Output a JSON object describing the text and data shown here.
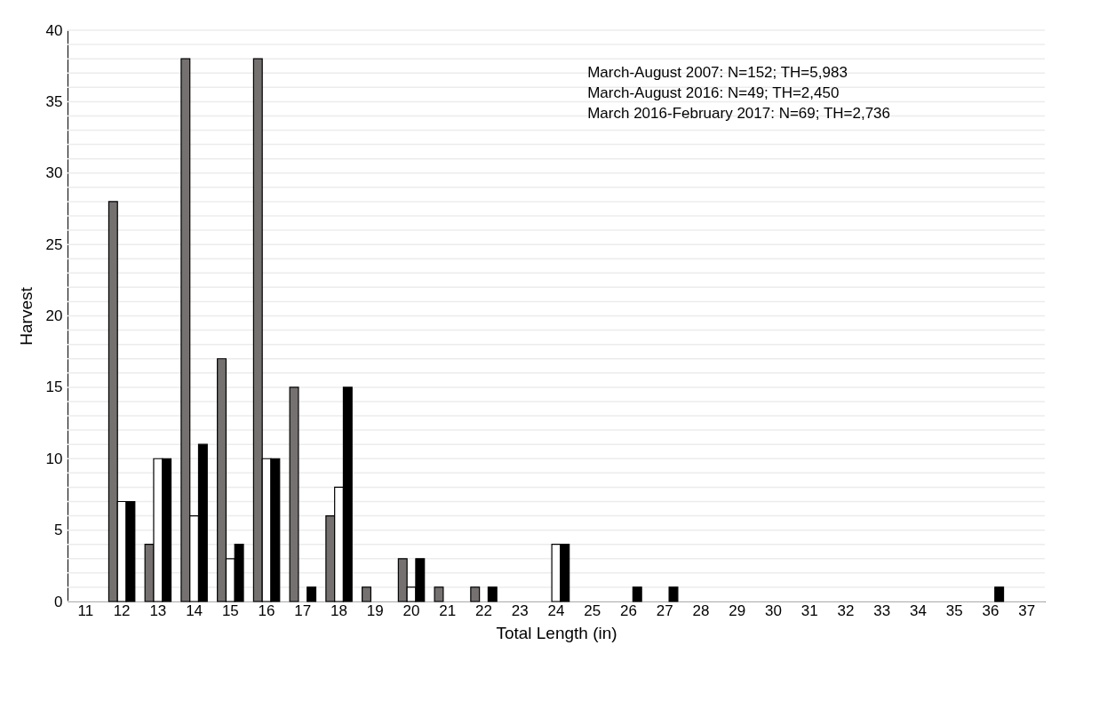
{
  "chart_data": {
    "type": "bar",
    "xlabel": "Total Length (in)",
    "ylabel": "Harvest",
    "categories": [
      "11",
      "12",
      "13",
      "14",
      "15",
      "16",
      "17",
      "18",
      "19",
      "20",
      "21",
      "22",
      "23",
      "24",
      "25",
      "26",
      "27",
      "28",
      "29",
      "30",
      "31",
      "32",
      "33",
      "34",
      "35",
      "36",
      "37"
    ],
    "series": [
      {
        "color": "#767171",
        "values": [
          null,
          28,
          4,
          38,
          17,
          38,
          15,
          6,
          1,
          3,
          1,
          1,
          null,
          null,
          null,
          null,
          null,
          null,
          null,
          null,
          null,
          null,
          null,
          null,
          null,
          null,
          null
        ]
      },
      {
        "color": "#ffffff",
        "values": [
          null,
          7,
          10,
          6,
          3,
          10,
          null,
          8,
          null,
          1,
          null,
          null,
          null,
          4,
          null,
          null,
          null,
          null,
          null,
          null,
          null,
          null,
          null,
          null,
          null,
          null,
          null
        ]
      },
      {
        "color": "#000000",
        "values": [
          null,
          7,
          10,
          11,
          4,
          10,
          1,
          15,
          null,
          3,
          null,
          1,
          null,
          4,
          null,
          1,
          1,
          null,
          null,
          null,
          null,
          null,
          null,
          null,
          null,
          1,
          null
        ]
      }
    ],
    "ylim": [
      0,
      40
    ],
    "yticks": [
      0,
      {
        "value": 1,
        "label": null
      },
      {
        "value": 2,
        "label": null
      },
      {
        "value": 3,
        "label": null
      },
      {
        "value": 4,
        "label": null
      },
      5,
      {
        "value": 6,
        "label": null
      },
      {
        "value": 7,
        "label": null
      },
      {
        "value": 8,
        "label": null
      },
      {
        "value": 9,
        "label": null
      },
      10,
      {
        "value": 11,
        "label": null
      },
      {
        "value": 12,
        "label": null
      },
      {
        "value": 13,
        "label": null
      },
      {
        "value": 14,
        "label": null
      },
      15,
      {
        "value": 16,
        "label": null
      },
      {
        "value": 17,
        "label": null
      },
      {
        "value": 18,
        "label": null
      },
      {
        "value": 19,
        "label": null
      },
      20,
      {
        "value": 21,
        "label": null
      },
      {
        "value": 22,
        "label": null
      },
      {
        "value": 23,
        "label": null
      },
      {
        "value": 24,
        "label": null
      },
      25,
      {
        "value": 26,
        "label": null
      },
      {
        "value": 27,
        "label": null
      },
      {
        "value": 28,
        "label": null
      },
      {
        "value": 29,
        "label": null
      },
      30,
      {
        "value": 31,
        "label": null
      },
      {
        "value": 32,
        "label": null
      },
      {
        "value": 33,
        "label": null
      },
      {
        "value": 34,
        "label": null
      },
      35,
      {
        "value": 36,
        "label": null
      },
      {
        "value": 37,
        "label": null
      },
      {
        "value": 38,
        "label": null
      },
      {
        "value": 39,
        "label": null
      },
      40
    ],
    "grid": "y",
    "annotations": [
      "March-August 2007: N=152; TH=5,983",
      "March-August 2016: N=49; TH=2,450",
      "March 2016-February 2017: N=69; TH=2,736"
    ]
  }
}
